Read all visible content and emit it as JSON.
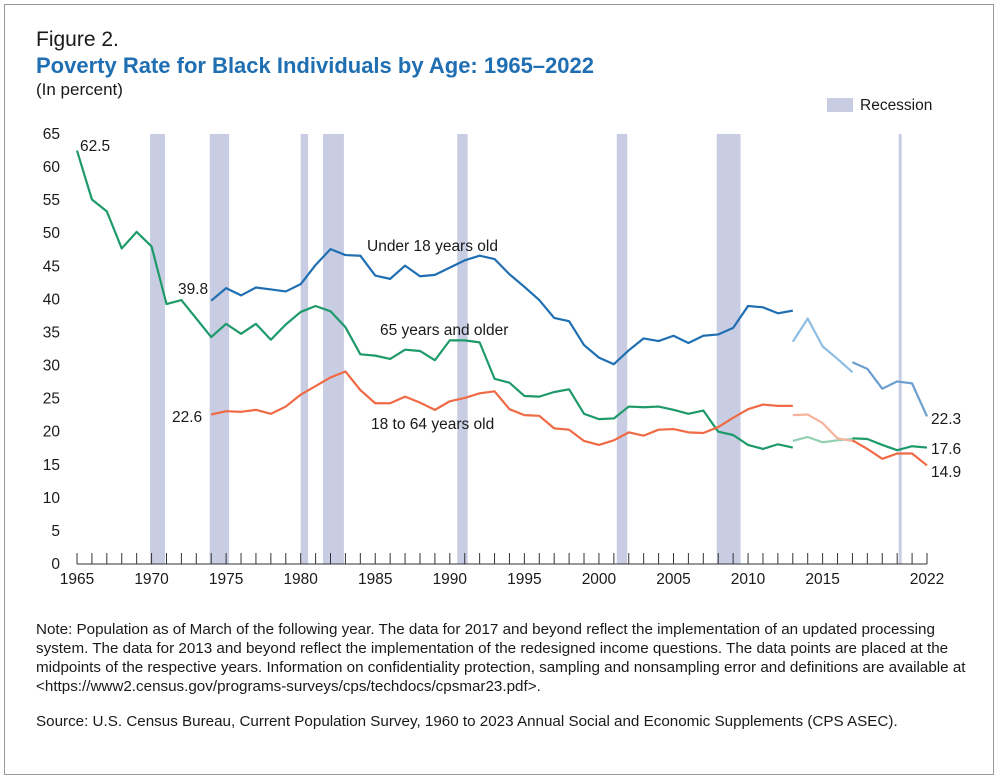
{
  "figure_label": "Figure 2.",
  "title": "Poverty Rate for Black Individuals by Age: 1965–2022",
  "subtitle": "(In percent)",
  "note": "Note: Population as of March of the following year. The data for 2017 and beyond reflect the implementation of an updated processing system. The data for 2013 and beyond reflect the implementation of the redesigned income questions. The data points are placed at the midpoints of the respective years. Information on confidentiality protection, sampling and nonsampling error and definitions are available at <https://www2.census.gov/programs-surveys/cps/techdocs/cpsmar23.pdf>.",
  "source": "Source: U.S. Census Bureau, Current Population Survey, 1960 to 2023 Annual Social and Economic Supplements (CPS ASEC).",
  "colors": {
    "blue": "#1f6fb2",
    "blue_light": "#8dbde3",
    "blue_mid": "#6a9fcf",
    "green": "#1e9a6a",
    "green_light": "#93cfb2",
    "orange": "#ef6a45",
    "orange_light": "#f7b39e",
    "recession": "#c9cde3",
    "axis": "#333333"
  },
  "chart_data": {
    "type": "line",
    "title": "Poverty Rate for Black Individuals by Age: 1965–2022",
    "ylabel": "In percent",
    "xlabel": "",
    "xlim": [
      1965,
      2022
    ],
    "ylim": [
      0,
      65
    ],
    "yticks": [
      0,
      5,
      10,
      15,
      20,
      25,
      30,
      35,
      40,
      45,
      50,
      55,
      60,
      65
    ],
    "xtick_labels": [
      "1965",
      "1970",
      "1975",
      "1980",
      "1985",
      "1990",
      "1995",
      "2000",
      "2005",
      "2010",
      "2015",
      "2022"
    ],
    "xtick_label_values": [
      1965,
      1970,
      1975,
      1980,
      1985,
      1990,
      1995,
      2000,
      2005,
      2010,
      2015,
      2022
    ],
    "legend": {
      "recession_label": "Recession",
      "placement": "top-right"
    },
    "recessions": [
      [
        1969.9,
        1970.9
      ],
      [
        1973.9,
        1975.2
      ],
      [
        1980.0,
        1980.5
      ],
      [
        1981.5,
        1982.9
      ],
      [
        1990.5,
        1991.2
      ],
      [
        2001.2,
        2001.9
      ],
      [
        2007.9,
        2009.5
      ],
      [
        2020.1,
        2020.3
      ]
    ],
    "series": [
      {
        "name": "Under 18 years old",
        "color_key": "blue",
        "label": "Under 18 years old",
        "start_label": "39.8",
        "end_label": "22.3",
        "segments": [
          {
            "style": "solid",
            "x": [
              1974,
              1975,
              1976,
              1977,
              1978,
              1979,
              1980,
              1981,
              1982,
              1983,
              1984,
              1985,
              1986,
              1987,
              1988,
              1989,
              1990,
              1991,
              1992,
              1993,
              1994,
              1995,
              1996,
              1997,
              1998,
              1999,
              2000,
              2001,
              2002,
              2003,
              2004,
              2005,
              2006,
              2007,
              2008,
              2009,
              2010,
              2011,
              2012,
              2013
            ],
            "y": [
              39.8,
              41.7,
              40.6,
              41.8,
              41.5,
              41.2,
              42.3,
              45.2,
              47.6,
              46.7,
              46.6,
              43.6,
              43.1,
              45.1,
              43.5,
              43.7,
              44.8,
              45.9,
              46.6,
              46.1,
              43.8,
              41.9,
              39.9,
              37.2,
              36.7,
              33.1,
              31.2,
              30.2,
              32.3,
              34.1,
              33.7,
              34.5,
              33.4,
              34.5,
              34.7,
              35.7,
              39.0,
              38.8,
              37.9,
              38.3
            ]
          },
          {
            "style": "redesign",
            "x": [
              2013,
              2014,
              2015,
              2016
            ],
            "y": [
              33.6,
              37.1,
              32.9,
              31.0
            ]
          },
          {
            "style": "light",
            "x": [
              2016,
              2017
            ],
            "y": [
              31.0,
              29.0
            ]
          },
          {
            "style": "updated",
            "x": [
              2017,
              2018,
              2019,
              2020,
              2021,
              2022
            ],
            "y": [
              30.5,
              29.5,
              26.5,
              27.6,
              27.3,
              22.3
            ]
          }
        ]
      },
      {
        "name": "65 years and older",
        "color_key": "green",
        "label": "65 years and older",
        "start_label": "62.5",
        "end_label": "17.6",
        "segments": [
          {
            "style": "solid",
            "x": [
              1965,
              1966,
              1967,
              1968,
              1969,
              1970,
              1971,
              1972,
              1973,
              1974,
              1975,
              1976,
              1977,
              1978,
              1979,
              1980,
              1981,
              1982,
              1983,
              1984,
              1985,
              1986,
              1987,
              1988,
              1989,
              1990,
              1991,
              1992,
              1993,
              1994,
              1995,
              1996,
              1997,
              1998,
              1999,
              2000,
              2001,
              2002,
              2003,
              2004,
              2005,
              2006,
              2007,
              2008,
              2009,
              2010,
              2011,
              2012,
              2013
            ],
            "y": [
              62.5,
              55.1,
              53.3,
              47.7,
              50.2,
              48.0,
              39.3,
              39.9,
              37.1,
              34.3,
              36.3,
              34.8,
              36.3,
              33.9,
              36.2,
              38.1,
              39.0,
              38.2,
              35.8,
              31.7,
              31.5,
              31.0,
              32.4,
              32.2,
              30.8,
              33.8,
              33.8,
              33.5,
              28.0,
              27.4,
              25.4,
              25.3,
              26.0,
              26.4,
              22.7,
              21.9,
              22.0,
              23.8,
              23.7,
              23.8,
              23.3,
              22.7,
              23.2,
              20.0,
              19.5,
              18.0,
              17.4,
              18.1,
              17.6
            ]
          },
          {
            "style": "light",
            "x": [
              2013,
              2014,
              2015,
              2016,
              2017
            ],
            "y": [
              18.6,
              19.2,
              18.4,
              18.7,
              18.9
            ]
          },
          {
            "style": "solid",
            "x": [
              2017,
              2018,
              2019,
              2020,
              2021,
              2022
            ],
            "y": [
              19.0,
              18.9,
              18.0,
              17.2,
              17.8,
              17.6
            ]
          }
        ]
      },
      {
        "name": "18 to 64 years old",
        "color_key": "orange",
        "label": "18 to 64 years old",
        "start_label": "22.6",
        "end_label": "14.9",
        "segments": [
          {
            "style": "solid",
            "x": [
              1974,
              1975,
              1976,
              1977,
              1978,
              1979,
              1980,
              1981,
              1982,
              1983,
              1984,
              1985,
              1986,
              1987,
              1988,
              1989,
              1990,
              1991,
              1992,
              1993,
              1994,
              1995,
              1996,
              1997,
              1998,
              1999,
              2000,
              2001,
              2002,
              2003,
              2004,
              2005,
              2006,
              2007,
              2008,
              2009,
              2010,
              2011,
              2012,
              2013
            ],
            "y": [
              22.6,
              23.1,
              23.0,
              23.3,
              22.7,
              23.8,
              25.6,
              26.9,
              28.2,
              29.1,
              26.3,
              24.3,
              24.3,
              25.3,
              24.4,
              23.3,
              24.6,
              25.1,
              25.8,
              26.1,
              23.4,
              22.5,
              22.4,
              20.5,
              20.3,
              18.6,
              18.0,
              18.7,
              19.9,
              19.4,
              20.3,
              20.4,
              19.9,
              19.8,
              20.7,
              22.1,
              23.4,
              24.1,
              23.9,
              23.9
            ]
          },
          {
            "style": "light",
            "x": [
              2013,
              2014,
              2015,
              2016,
              2017
            ],
            "y": [
              22.5,
              22.6,
              21.3,
              19.0,
              18.6
            ]
          },
          {
            "style": "solid",
            "x": [
              2017,
              2018,
              2019,
              2020,
              2021,
              2022
            ],
            "y": [
              18.7,
              17.4,
              15.9,
              16.7,
              16.7,
              14.9
            ]
          }
        ]
      }
    ]
  }
}
